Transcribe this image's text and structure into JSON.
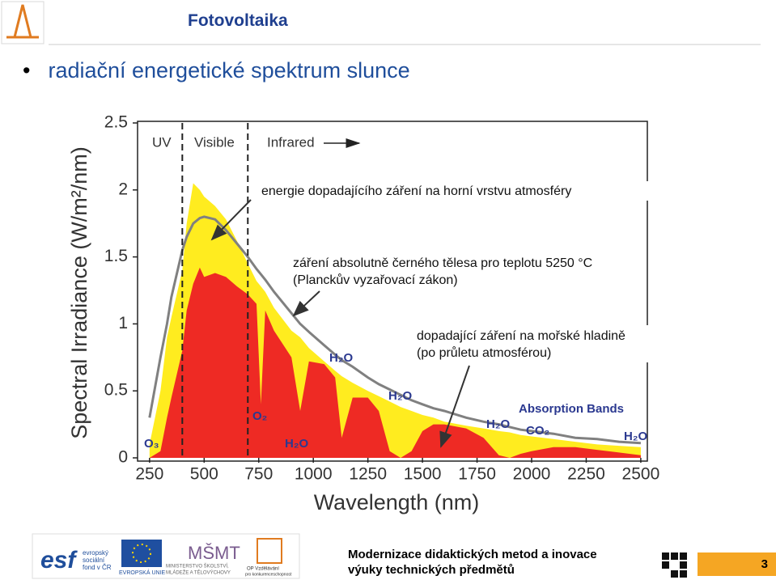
{
  "header": {
    "title": "Fotovoltaika"
  },
  "slide": {
    "bullet": "radiační energetické spektrum slunce"
  },
  "chart_data": {
    "type": "area",
    "xlabel": "Wavelength (nm)",
    "ylabel": "Spectral Irradiance (W/m²/nm)",
    "xlim": [
      195,
      2530
    ],
    "ylim": [
      0,
      2.5
    ],
    "xticks": [
      250,
      500,
      750,
      1000,
      1250,
      1500,
      1750,
      2000,
      2250,
      2500
    ],
    "yticks": [
      0,
      0.5,
      1,
      1.5,
      2,
      2.5
    ],
    "band_edges": [
      400,
      700
    ],
    "band_labels": [
      "UV",
      "Visible",
      "Infrared"
    ],
    "x": [
      250,
      300,
      330,
      350,
      400,
      420,
      450,
      480,
      500,
      550,
      600,
      650,
      700,
      740,
      760,
      780,
      820,
      900,
      940,
      980,
      1050,
      1100,
      1130,
      1180,
      1250,
      1300,
      1350,
      1400,
      1450,
      1500,
      1550,
      1600,
      1700,
      1780,
      1850,
      1900,
      1950,
      2000,
      2100,
      2200,
      2300,
      2400,
      2500
    ],
    "series": [
      {
        "color": "#ffec1f",
        "kind": "area",
        "values": [
          0.1,
          0.5,
          0.9,
          1.05,
          1.4,
          1.75,
          2.05,
          2.0,
          1.95,
          1.88,
          1.78,
          1.62,
          1.45,
          1.32,
          1.28,
          1.24,
          1.12,
          0.95,
          0.9,
          0.82,
          0.72,
          0.65,
          0.61,
          0.56,
          0.5,
          0.46,
          0.42,
          0.38,
          0.35,
          0.32,
          0.3,
          0.27,
          0.24,
          0.22,
          0.2,
          0.19,
          0.17,
          0.16,
          0.14,
          0.12,
          0.1,
          0.09,
          0.08
        ]
      },
      {
        "color": "#ee2a24",
        "kind": "area",
        "values": [
          0,
          0.05,
          0.3,
          0.45,
          0.8,
          1.1,
          1.3,
          1.42,
          1.35,
          1.38,
          1.35,
          1.28,
          1.22,
          1.15,
          0.4,
          1.1,
          0.95,
          0.75,
          0.35,
          0.72,
          0.7,
          0.6,
          0.15,
          0.45,
          0.45,
          0.35,
          0.05,
          0,
          0.05,
          0.2,
          0.25,
          0.25,
          0.22,
          0.15,
          0.02,
          0,
          0.03,
          0.05,
          0.08,
          0.08,
          0.06,
          0.04,
          0.02
        ]
      },
      {
        "color": "#808080",
        "kind": "line",
        "values": [
          0.3,
          0.75,
          1.0,
          1.2,
          1.55,
          1.65,
          1.75,
          1.79,
          1.8,
          1.78,
          1.7,
          1.6,
          1.5,
          1.41,
          1.37,
          1.33,
          1.24,
          1.08,
          1.0,
          0.94,
          0.84,
          0.77,
          0.73,
          0.68,
          0.6,
          0.55,
          0.51,
          0.47,
          0.43,
          0.4,
          0.37,
          0.35,
          0.3,
          0.27,
          0.25,
          0.23,
          0.21,
          0.2,
          0.18,
          0.15,
          0.14,
          0.12,
          0.11
        ]
      }
    ],
    "annotations": {
      "toa": "energie dopadajícího záření na horní vrstvu atmosféry",
      "blackbody": [
        "záření absolutně černého tělesa pro teplotu 5250 °C",
        "(Planckův vyzařovací zákon)"
      ],
      "sea": [
        "dopadající záření na mořské hladině",
        "(po průletu atmosférou)"
      ],
      "absorption": "Absorption Bands",
      "molecules": [
        "O₃",
        "O₂",
        "H₂O",
        "H₂O",
        "H₂O",
        "H₂O",
        "CO₂",
        "H₂O"
      ]
    }
  },
  "footer": {
    "lines": [
      "Modernizace didaktických metod a inovace",
      "výuky technických předmětů"
    ],
    "page": 3,
    "logos": [
      "esf",
      "evropský",
      "sociální",
      "fond v ČR",
      "EVROPSKÁ UNIE",
      "MINISTERSTVO ŠKOLSTVÍ,",
      "MLÁDEŽE A TĚLOVÝCHOVY",
      "OP Vzdělávání",
      "pro konkurenceschopnost"
    ]
  }
}
